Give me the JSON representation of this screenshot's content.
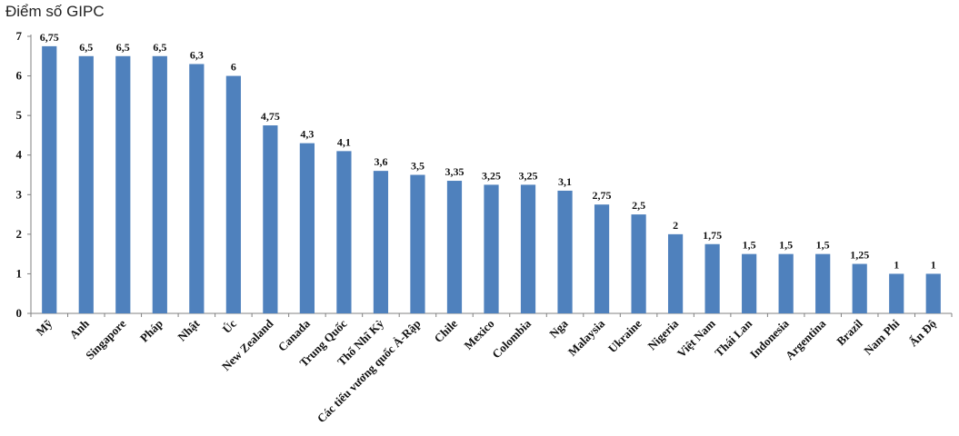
{
  "chart_data": {
    "type": "bar",
    "title": "Điểm số GIPC",
    "xlabel": "",
    "ylabel": "",
    "ylim": [
      0,
      7
    ],
    "yticks": [
      0,
      1,
      2,
      3,
      4,
      5,
      6,
      7
    ],
    "grid": false,
    "legend": "none",
    "bar_color": "#4f81bd",
    "categories": [
      "Mỹ",
      "Anh",
      "Singapore",
      "Pháp",
      "Nhật",
      "Úc",
      "New Zealand",
      "Canada",
      "Trung Quốc",
      "Thổ Nhĩ Kỳ",
      "Các tiểu vương quốc Ả-Rập",
      "Chile",
      "Mexico",
      "Colombia",
      "Nga",
      "Malaysia",
      "Ukraine",
      "Nigeria",
      "Việt Nam",
      "Thái Lan",
      "Indonesia",
      "Argentina",
      "Brazil",
      "Nam Phi",
      "Ấn Độ"
    ],
    "values": [
      6.75,
      6.5,
      6.5,
      6.5,
      6.3,
      6,
      4.75,
      4.3,
      4.1,
      3.6,
      3.5,
      3.35,
      3.25,
      3.25,
      3.1,
      2.75,
      2.5,
      2,
      1.75,
      1.5,
      1.5,
      1.5,
      1.25,
      1,
      1
    ],
    "value_labels": [
      "6,75",
      "6,5",
      "6,5",
      "6,5",
      "6,3",
      "6",
      "4,75",
      "4,3",
      "4,1",
      "3,6",
      "3,5",
      "3,35",
      "3,25",
      "3,25",
      "3,1",
      "2,75",
      "2,5",
      "2",
      "1,75",
      "1,5",
      "1,5",
      "1,5",
      "1,25",
      "1",
      "1"
    ]
  }
}
